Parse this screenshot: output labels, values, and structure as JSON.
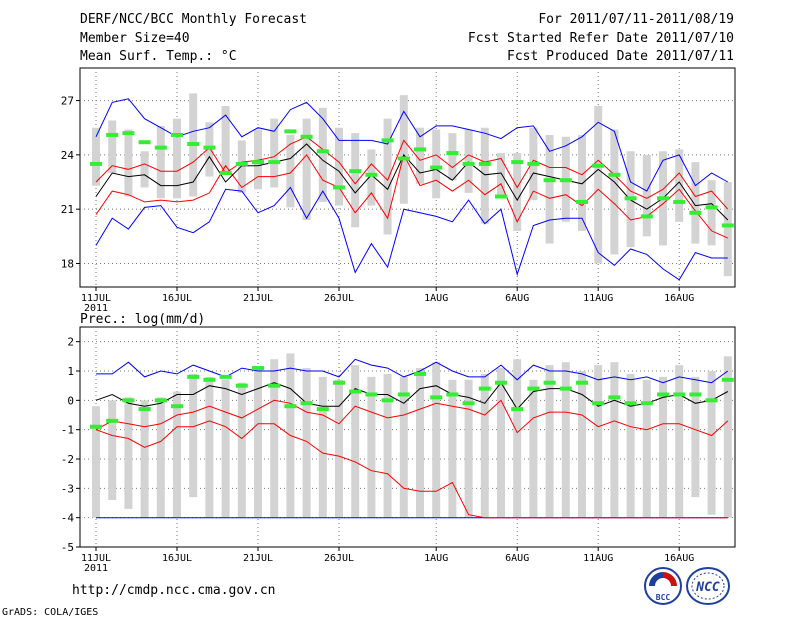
{
  "header": {
    "title": "DERF/NCC/BCC Monthly Forecast",
    "member_size": "Member Size=40",
    "variable": "Mean Surf. Temp.: °C",
    "period": "For 2011/07/11-2011/08/19",
    "fcst_started": "Fcst Started Refer Date 2011/07/10",
    "fcst_produced": "Fcst Produced Date 2011/07/11"
  },
  "precip_label": "Prec.: log(mm/d)",
  "footer": {
    "url": "http://cmdp.ncc.cma.gov.cn",
    "credit": "GrADS: COLA/IGES"
  },
  "logos": {
    "left_text": "BCC",
    "right_text": "NCC"
  },
  "colors": {
    "envelope": "#0000ff",
    "spread": "#ff0000",
    "mean": "#000000",
    "box": "#d3d3d3",
    "obs": "#33ee33",
    "grid": "#777777"
  },
  "chart_data": [
    {
      "type": "line",
      "title": "Mean Surf. Temp.: °C",
      "x_tick_labels": [
        "11JUL",
        "16JUL",
        "21JUL",
        "26JUL",
        "1AUG",
        "6AUG",
        "11AUG",
        "16AUG"
      ],
      "x_year_label": "2011",
      "x_tick_days": [
        0,
        5,
        10,
        15,
        21,
        26,
        31,
        36
      ],
      "days": 40,
      "ylim": [
        16.7,
        28.8
      ],
      "yticks": [
        18,
        21,
        24,
        27
      ],
      "series": [
        {
          "name": "max",
          "values": [
            19.0,
            20.5,
            19.9,
            21.1,
            21.2,
            20.0,
            19.7,
            20.3,
            22.1,
            22.0,
            20.8,
            21.2,
            22.2,
            20.5,
            22.0,
            20.5,
            17.5,
            19.1,
            17.8,
            21.0,
            20.8,
            20.6,
            20.3,
            21.5,
            20.2,
            21.0,
            17.4,
            20.1,
            20.4,
            20.5,
            20.5,
            18.6,
            17.9,
            18.8,
            18.5,
            17.7,
            17.1,
            18.6,
            18.3,
            18.3
          ]
        },
        {
          "name": "p_low",
          "values": [
            20.7,
            22.0,
            21.8,
            21.4,
            21.5,
            21.4,
            21.5,
            21.9,
            23.4,
            22.2,
            22.8,
            22.8,
            23.0,
            24.0,
            22.6,
            22.2,
            20.8,
            21.9,
            20.5,
            24.0,
            22.3,
            22.6,
            22.0,
            22.6,
            21.8,
            22.4,
            20.3,
            22.0,
            21.6,
            21.8,
            21.2,
            22.1,
            21.3,
            20.4,
            20.6,
            21.3,
            22.1,
            20.9,
            19.8,
            19.4
          ]
        },
        {
          "name": "mean",
          "values": [
            21.7,
            23.0,
            22.8,
            22.9,
            22.3,
            22.3,
            22.5,
            23.9,
            22.5,
            23.4,
            23.4,
            23.6,
            23.8,
            24.6,
            23.7,
            23.1,
            21.9,
            22.9,
            22.1,
            24.0,
            23.0,
            23.2,
            22.6,
            23.6,
            22.9,
            23.0,
            21.5,
            23.0,
            22.8,
            22.6,
            22.4,
            23.2,
            22.5,
            21.5,
            21.0,
            21.6,
            22.5,
            21.2,
            21.3,
            20.4
          ]
        },
        {
          "name": "p_high",
          "values": [
            22.5,
            23.4,
            23.2,
            23.5,
            23.1,
            23.1,
            23.6,
            24.4,
            23.0,
            23.6,
            23.7,
            23.9,
            24.6,
            25.0,
            24.3,
            23.6,
            22.4,
            23.5,
            22.6,
            24.8,
            23.7,
            24.0,
            23.3,
            24.0,
            23.6,
            23.8,
            22.2,
            23.7,
            23.3,
            23.3,
            22.9,
            23.7,
            22.9,
            22.0,
            21.6,
            22.1,
            23.0,
            21.7,
            22.0,
            21.0
          ]
        },
        {
          "name": "min",
          "values": [
            25.0,
            26.9,
            27.1,
            26.0,
            25.5,
            25.0,
            25.3,
            25.5,
            26.2,
            25.0,
            25.5,
            25.3,
            26.5,
            26.9,
            26.0,
            24.8,
            24.8,
            24.8,
            24.6,
            26.4,
            25.0,
            25.6,
            25.6,
            25.4,
            25.2,
            24.9,
            25.5,
            25.6,
            24.2,
            24.5,
            25.0,
            25.8,
            25.3,
            22.5,
            22.0,
            23.7,
            24.0,
            22.3,
            23.0,
            22.5
          ]
        }
      ],
      "boxes": [
        [
          22.3,
          25.5
        ],
        [
          23.0,
          25.9
        ],
        [
          21.7,
          25.4
        ],
        [
          22.2,
          24.2
        ],
        [
          21.6,
          25.6
        ],
        [
          21.6,
          26.0
        ],
        [
          21.7,
          27.4
        ],
        [
          22.8,
          25.8
        ],
        [
          22.9,
          26.7
        ],
        [
          21.9,
          24.8
        ],
        [
          22.1,
          25.4
        ],
        [
          22.2,
          26.0
        ],
        [
          21.1,
          25.1
        ],
        [
          20.4,
          26.0
        ],
        [
          21.4,
          26.6
        ],
        [
          21.2,
          25.5
        ],
        [
          20.0,
          25.2
        ],
        [
          21.2,
          24.3
        ],
        [
          19.6,
          26.0
        ],
        [
          21.3,
          27.3
        ],
        [
          22.4,
          25.5
        ],
        [
          21.6,
          25.4
        ],
        [
          22.6,
          25.2
        ],
        [
          21.9,
          25.4
        ],
        [
          20.2,
          25.5
        ],
        [
          21.7,
          24.1
        ],
        [
          19.8,
          24.1
        ],
        [
          21.5,
          25.5
        ],
        [
          19.1,
          25.1
        ],
        [
          20.3,
          25.0
        ],
        [
          19.8,
          25.1
        ],
        [
          18.0,
          26.7
        ],
        [
          18.5,
          25.4
        ],
        [
          18.9,
          24.2
        ],
        [
          19.5,
          24.0
        ],
        [
          19.0,
          24.2
        ],
        [
          20.3,
          24.3
        ],
        [
          19.1,
          23.6
        ],
        [
          19.0,
          22.6
        ],
        [
          17.3,
          22.5
        ]
      ],
      "obs": [
        23.5,
        25.1,
        25.2,
        24.7,
        24.4,
        25.1,
        24.6,
        24.4,
        23.0,
        23.5,
        23.6,
        23.6,
        25.3,
        25.0,
        24.2,
        22.2,
        23.1,
        22.9,
        24.8,
        23.8,
        24.3,
        23.3,
        24.1,
        23.5,
        23.5,
        21.7,
        23.6,
        23.5,
        22.6,
        22.6,
        21.4,
        23.4,
        22.9,
        21.6,
        20.6,
        21.6,
        21.4,
        20.8,
        21.1,
        20.1
      ]
    },
    {
      "type": "line",
      "title": "Prec.: log(mm/d)",
      "x_tick_labels": [
        "11JUL",
        "16JUL",
        "21JUL",
        "26JUL",
        "1AUG",
        "6AUG",
        "11AUG",
        "16AUG"
      ],
      "x_year_label": "2011",
      "x_tick_days": [
        0,
        5,
        10,
        15,
        21,
        26,
        31,
        36
      ],
      "days": 40,
      "ylim": [
        -5,
        2.5
      ],
      "yticks": [
        -5,
        -4,
        -3,
        -2,
        -1,
        0,
        1,
        2
      ],
      "series": [
        {
          "name": "max",
          "values": [
            -4.0,
            -4.0,
            -4.0,
            -4.0,
            -4.0,
            -4.0,
            -4.0,
            -4.0,
            -4.0,
            -4.0,
            -4.0,
            -4.0,
            -4.0,
            -4.0,
            -4.0,
            -4.0,
            -4.0,
            -4.0,
            -4.0,
            -4.0,
            -4.0,
            -4.0,
            -4.0,
            -4.0,
            -4.0,
            -4.0,
            -4.0,
            -4.0,
            -4.0,
            -4.0,
            -4.0,
            -4.0,
            -4.0,
            -4.0,
            -4.0,
            -4.0,
            -4.0,
            -4.0,
            -4.0,
            -4.0
          ]
        },
        {
          "name": "p_low",
          "values": [
            -1.0,
            -1.2,
            -1.3,
            -1.6,
            -1.4,
            -0.9,
            -0.9,
            -0.7,
            -0.9,
            -1.3,
            -0.8,
            -0.8,
            -1.2,
            -1.4,
            -1.8,
            -1.9,
            -2.1,
            -2.4,
            -2.5,
            -3.0,
            -3.1,
            -3.1,
            -2.8,
            -3.9,
            -4.0,
            -4.0,
            -4.0,
            -4.0,
            -4.0,
            -4.0,
            -4.0,
            -4.0,
            -4.0,
            -4.0,
            -4.0,
            -4.0,
            -4.0,
            -4.0,
            -4.0,
            -4.0
          ]
        },
        {
          "name": "mean",
          "values": [
            0.0,
            0.2,
            -0.1,
            -0.2,
            -0.1,
            0.2,
            0.2,
            0.5,
            0.4,
            0.2,
            0.4,
            0.6,
            0.4,
            -0.1,
            -0.2,
            -0.2,
            0.4,
            0.2,
            0.2,
            -0.1,
            0.4,
            0.5,
            0.2,
            0.1,
            -0.1,
            0.6,
            -0.3,
            0.3,
            0.4,
            0.4,
            0.2,
            -0.2,
            0.0,
            -0.2,
            -0.1,
            0.1,
            0.2,
            -0.1,
            0.0,
            0.3
          ]
        },
        {
          "name": "p_high",
          "values": [
            -1.0,
            -0.7,
            -0.8,
            -0.9,
            -0.8,
            -0.5,
            -0.4,
            -0.2,
            -0.4,
            -0.6,
            -0.3,
            0.0,
            -0.1,
            -0.4,
            -0.5,
            -0.8,
            -0.2,
            -0.4,
            -0.6,
            -0.5,
            -0.3,
            -0.1,
            -0.2,
            -0.3,
            -0.5,
            0.0,
            -1.1,
            -0.6,
            -0.4,
            -0.4,
            -0.5,
            -0.9,
            -0.7,
            -0.9,
            -1.0,
            -0.8,
            -0.8,
            -1.0,
            -1.2,
            -0.7
          ]
        },
        {
          "name": "min",
          "values": [
            0.9,
            0.9,
            1.3,
            0.8,
            1.0,
            0.9,
            1.2,
            1.0,
            0.8,
            1.1,
            1.0,
            1.0,
            1.1,
            1.0,
            1.0,
            0.8,
            1.4,
            1.2,
            1.1,
            0.8,
            1.0,
            1.3,
            1.0,
            0.8,
            0.8,
            1.2,
            0.7,
            1.2,
            1.0,
            1.0,
            0.9,
            0.7,
            0.8,
            0.7,
            0.8,
            0.6,
            0.8,
            0.7,
            0.6,
            1.0
          ]
        }
      ],
      "boxes": [
        [
          -4.0,
          -0.2
        ],
        [
          -3.4,
          0.0
        ],
        [
          -3.7,
          0.1
        ],
        [
          -4.0,
          0.0
        ],
        [
          -4.0,
          0.1
        ],
        [
          -4.0,
          0.3
        ],
        [
          -3.3,
          0.9
        ],
        [
          -4.0,
          0.8
        ],
        [
          -4.0,
          0.7
        ],
        [
          -4.0,
          0.6
        ],
        [
          -4.0,
          1.1
        ],
        [
          -4.0,
          1.4
        ],
        [
          -4.0,
          1.6
        ],
        [
          -4.0,
          1.1
        ],
        [
          -4.0,
          0.8
        ],
        [
          -4.0,
          0.7
        ],
        [
          -4.0,
          1.2
        ],
        [
          -4.0,
          0.8
        ],
        [
          -4.0,
          0.9
        ],
        [
          -4.0,
          0.8
        ],
        [
          -4.0,
          1.1
        ],
        [
          -4.0,
          1.3
        ],
        [
          -4.0,
          0.7
        ],
        [
          -4.0,
          0.7
        ],
        [
          -4.0,
          0.9
        ],
        [
          -4.0,
          1.1
        ],
        [
          -4.0,
          1.4
        ],
        [
          -4.0,
          0.7
        ],
        [
          -4.0,
          1.2
        ],
        [
          -4.0,
          1.3
        ],
        [
          -4.0,
          1.0
        ],
        [
          -4.0,
          1.2
        ],
        [
          -4.0,
          1.3
        ],
        [
          -4.0,
          0.9
        ],
        [
          -4.0,
          0.7
        ],
        [
          -4.0,
          0.8
        ],
        [
          -4.0,
          1.2
        ],
        [
          -3.3,
          0.8
        ],
        [
          -3.9,
          1.0
        ],
        [
          -4.0,
          1.5
        ]
      ],
      "obs": [
        -0.9,
        -0.7,
        0.0,
        -0.3,
        0.0,
        -0.2,
        0.8,
        0.7,
        0.8,
        0.5,
        1.1,
        0.5,
        -0.2,
        -0.1,
        -0.3,
        0.6,
        0.3,
        0.2,
        0.0,
        0.2,
        0.9,
        0.1,
        0.2,
        -0.1,
        0.4,
        0.6,
        -0.3,
        0.4,
        0.6,
        0.4,
        0.6,
        -0.1,
        0.1,
        -0.1,
        -0.1,
        0.2,
        0.2,
        0.2,
        0.0,
        0.7
      ]
    }
  ]
}
